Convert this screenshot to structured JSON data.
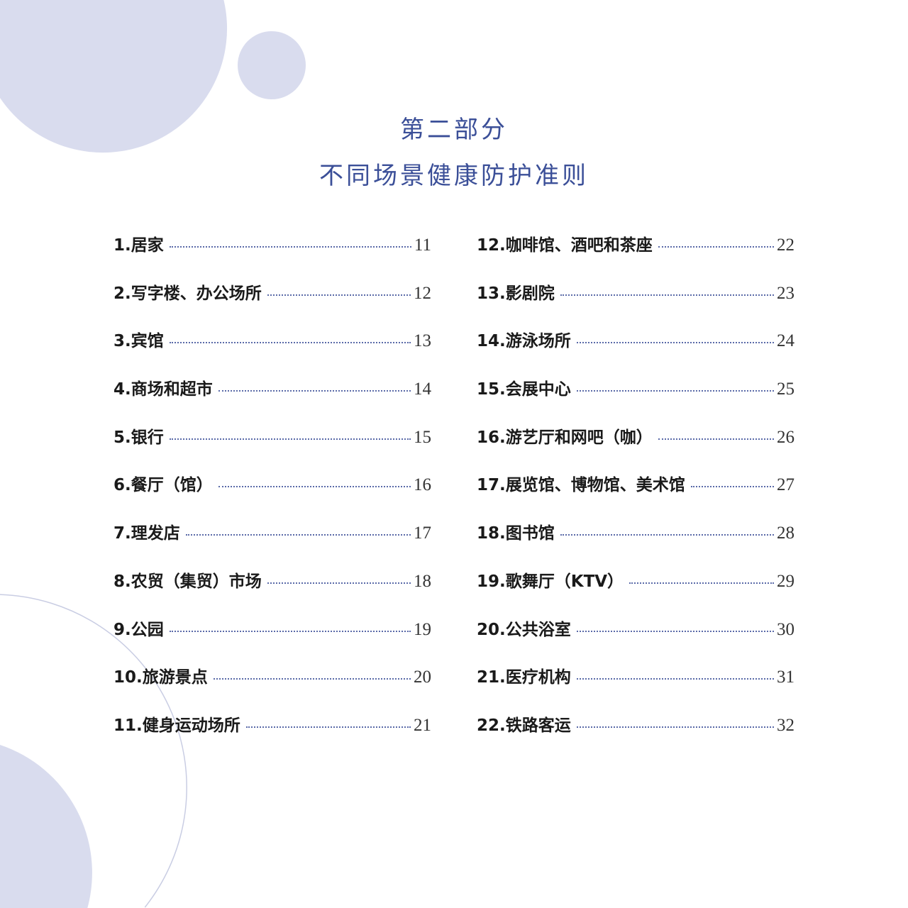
{
  "header": {
    "part": "第二部分",
    "title": "不同场景健康防护准则"
  },
  "colors": {
    "title": "#3b4f98",
    "circles": "#d9dcee",
    "dots": "#5a6aa8"
  },
  "toc": {
    "left": [
      {
        "label": "1.居家",
        "page": "11"
      },
      {
        "label": "2.写字楼、办公场所",
        "page": "12"
      },
      {
        "label": "3.宾馆",
        "page": "13"
      },
      {
        "label": "4.商场和超市",
        "page": "14"
      },
      {
        "label": "5.银行",
        "page": "15"
      },
      {
        "label": "6.餐厅（馆）",
        "page": "16"
      },
      {
        "label": "7.理发店",
        "page": "17"
      },
      {
        "label": "8.农贸（集贸）市场",
        "page": "18"
      },
      {
        "label": "9.公园",
        "page": "19"
      },
      {
        "label": "10.旅游景点",
        "page": "20"
      },
      {
        "label": "11.健身运动场所",
        "page": "21"
      }
    ],
    "right": [
      {
        "label": "12.咖啡馆、酒吧和茶座",
        "page": "22"
      },
      {
        "label": "13.影剧院",
        "page": "23"
      },
      {
        "label": "14.游泳场所",
        "page": "24"
      },
      {
        "label": "15.会展中心",
        "page": "25"
      },
      {
        "label": "16.游艺厅和网吧（咖）",
        "page": "26"
      },
      {
        "label": "17.展览馆、博物馆、美术馆",
        "page": "27"
      },
      {
        "label": "18.图书馆",
        "page": "28"
      },
      {
        "label": "19.歌舞厅（KTV）",
        "page": "29"
      },
      {
        "label": "20.公共浴室",
        "page": "30"
      },
      {
        "label": "21.医疗机构",
        "page": "31"
      },
      {
        "label": "22.铁路客运",
        "page": "32"
      }
    ]
  }
}
